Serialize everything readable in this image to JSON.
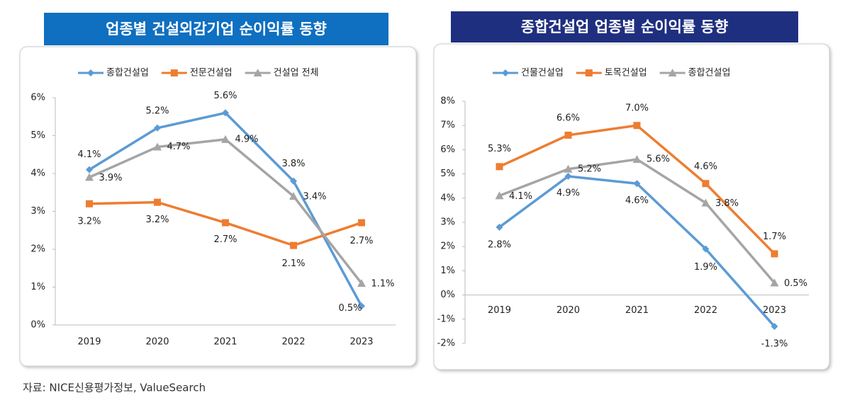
{
  "chart_data": [
    {
      "type": "line",
      "title": "업종별 건설외감기업 순이익률 동향",
      "categories": [
        "2019",
        "2020",
        "2021",
        "2022",
        "2023"
      ],
      "ylim": [
        0,
        6
      ],
      "yticks": [
        {
          "value": 0,
          "label": "0%"
        },
        {
          "value": 1,
          "label": "1%"
        },
        {
          "value": 2,
          "label": "2%"
        },
        {
          "value": 3,
          "label": "3%"
        },
        {
          "value": 4,
          "label": "4%"
        },
        {
          "value": 5,
          "label": "5%"
        },
        {
          "value": 6,
          "label": "6%"
        }
      ],
      "series": [
        {
          "name": "종합건설업",
          "color": "#5b9bd5",
          "marker": "diamond",
          "values": [
            4.1,
            5.2,
            5.6,
            3.8,
            0.5
          ],
          "value_labels": [
            "4.1%",
            "5.2%",
            "5.6%",
            "3.8%",
            "0.5%"
          ]
        },
        {
          "name": "전문건설업",
          "color": "#ed7d31",
          "marker": "square",
          "values": [
            3.2,
            3.24,
            2.7,
            2.1,
            2.7
          ],
          "value_labels": [
            "3.2%",
            "3.2%",
            "2.7%",
            "2.1%",
            "2.7%"
          ]
        },
        {
          "name": "건설업 전체",
          "color": "#a5a5a5",
          "marker": "triangle",
          "values": [
            3.9,
            4.7,
            4.9,
            3.4,
            1.1
          ],
          "value_labels": [
            "3.9%",
            "4.7%",
            "4.9%",
            "3.4%",
            "1.1%"
          ]
        }
      ]
    },
    {
      "type": "line",
      "title": "종합건설업 업종별 순이익률 동향",
      "categories": [
        "2019",
        "2020",
        "2021",
        "2022",
        "2023"
      ],
      "ylim": [
        -2,
        8
      ],
      "yticks": [
        {
          "value": -2,
          "label": "-2%"
        },
        {
          "value": -1,
          "label": "-1%"
        },
        {
          "value": 0,
          "label": "0%"
        },
        {
          "value": 1,
          "label": "1%"
        },
        {
          "value": 2,
          "label": "2%"
        },
        {
          "value": 3,
          "label": "3%"
        },
        {
          "value": 4,
          "label": "4%"
        },
        {
          "value": 5,
          "label": "5%"
        },
        {
          "value": 6,
          "label": "6%"
        },
        {
          "value": 7,
          "label": "7%"
        },
        {
          "value": 8,
          "label": "8%"
        }
      ],
      "series": [
        {
          "name": "건물건설업",
          "color": "#5b9bd5",
          "marker": "diamond",
          "values": [
            2.8,
            4.9,
            4.6,
            1.9,
            -1.3
          ],
          "value_labels": [
            "2.8%",
            "4.9%",
            "4.6%",
            "1.9%",
            "-1.3%"
          ]
        },
        {
          "name": "토목건설업",
          "color": "#ed7d31",
          "marker": "square",
          "values": [
            5.3,
            6.6,
            7.0,
            4.6,
            1.7
          ],
          "value_labels": [
            "5.3%",
            "6.6%",
            "7.0%",
            "4.6%",
            "1.7%"
          ]
        },
        {
          "name": "종합건설업",
          "color": "#a5a5a5",
          "marker": "triangle",
          "values": [
            4.1,
            5.2,
            5.6,
            3.8,
            0.5
          ],
          "value_labels": [
            "4.1%",
            "5.2%",
            "5.6%",
            "3.8%",
            "0.5%"
          ]
        }
      ]
    }
  ],
  "source": "자료: NICE신용평가정보, ValueSearch"
}
